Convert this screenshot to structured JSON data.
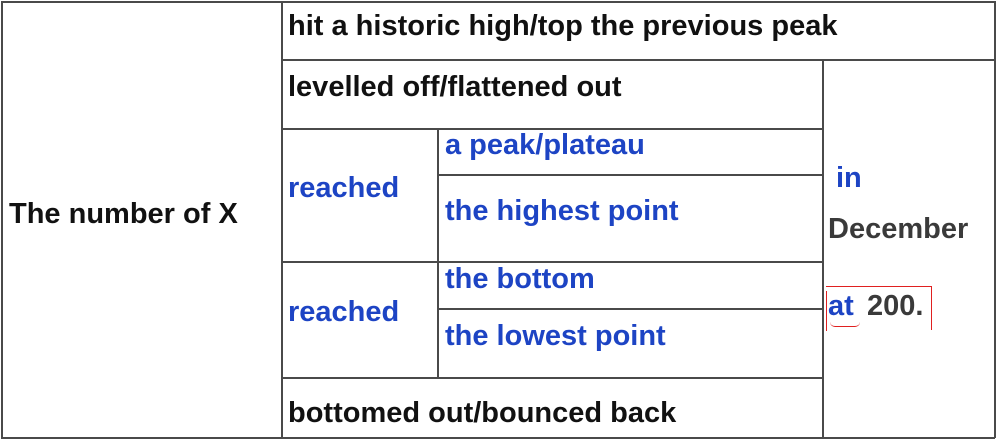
{
  "table": {
    "subject": "The number of X",
    "row_top": "hit a historic high/top the previous peak",
    "row_level": "levelled off/flattened out",
    "group_high": {
      "verb": "reached",
      "options": [
        "a peak/plateau",
        "the highest point"
      ]
    },
    "group_low": {
      "verb": "reached",
      "options": [
        "the bottom",
        "the lowest point"
      ]
    },
    "row_bottom": "bottomed out/bounced back",
    "time": {
      "preposition": "in",
      "month": "December"
    },
    "value": {
      "preposition": "at",
      "number": "200."
    }
  },
  "colors": {
    "dark_text": "#111111",
    "blue_text": "#1d44c4",
    "grey_text": "#3a3a3a",
    "annotation_red": "#e02020",
    "grid": "#4a4a4a"
  }
}
